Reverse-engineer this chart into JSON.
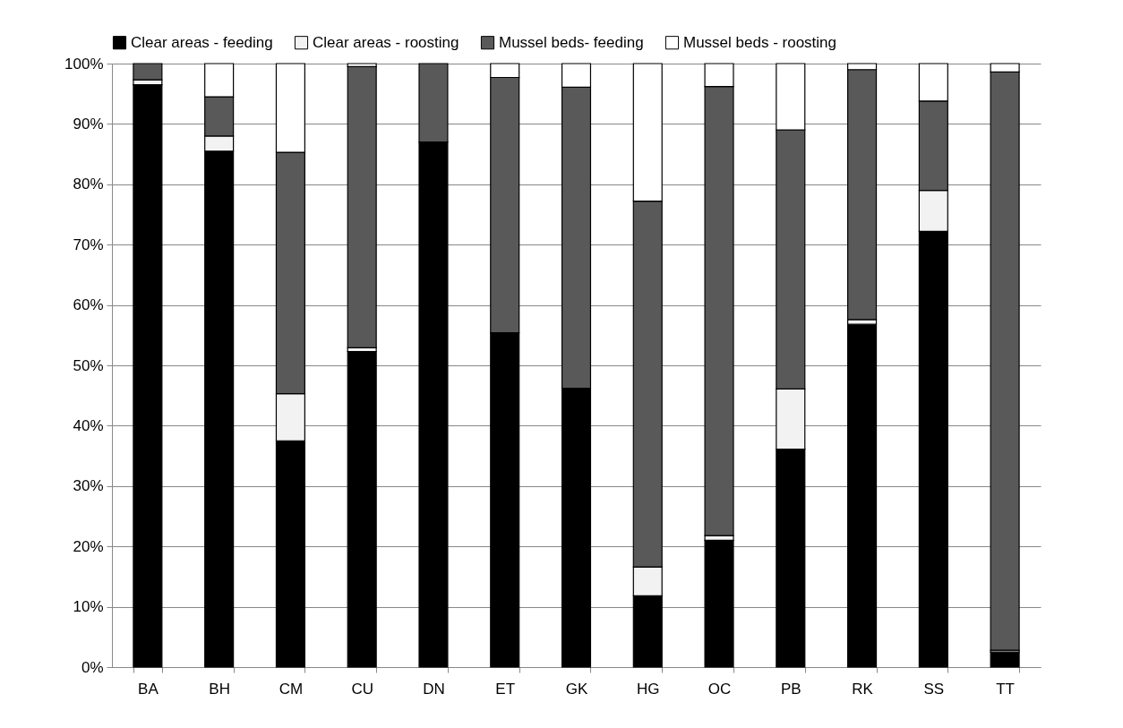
{
  "chart_data": {
    "type": "bar",
    "stacked": true,
    "categories": [
      "BA",
      "BH",
      "CM",
      "CU",
      "DN",
      "ET",
      "GK",
      "HG",
      "OC",
      "PB",
      "RK",
      "SS",
      "TT"
    ],
    "series": [
      {
        "name": "Clear areas - feeding",
        "color": "#000000",
        "values": [
          96.5,
          85.5,
          37.5,
          52.3,
          87,
          55.4,
          46.2,
          11.8,
          21,
          36.1,
          56.8,
          72.2,
          2.5
        ]
      },
      {
        "name": "Clear areas - roosting",
        "color": "#f2f2f2",
        "values": [
          0.8,
          2.5,
          7.8,
          0.6,
          0,
          0,
          0,
          4.8,
          0.8,
          10,
          0.8,
          6.8,
          0.3
        ]
      },
      {
        "name": "Mussel beds- feeding",
        "color": "#595959",
        "values": [
          2.7,
          6.5,
          40,
          46.6,
          13,
          42.3,
          49.9,
          60.6,
          74.4,
          42.9,
          41.4,
          14.8,
          95.8
        ]
      },
      {
        "name": "Mussel beds - roosting",
        "color": "#ffffff",
        "values": [
          0,
          5.5,
          14.7,
          0.5,
          0,
          2.3,
          3.9,
          22.8,
          3.8,
          11,
          1,
          6.2,
          1.4
        ]
      }
    ],
    "ylim": [
      0,
      100
    ],
    "yticks": [
      {
        "value": 0,
        "label": "0%"
      },
      {
        "value": 10,
        "label": "10%"
      },
      {
        "value": 20,
        "label": "20%"
      },
      {
        "value": 30,
        "label": "30%"
      },
      {
        "value": 40,
        "label": "40%"
      },
      {
        "value": 50,
        "label": "50%"
      },
      {
        "value": 60,
        "label": "60%"
      },
      {
        "value": 70,
        "label": "70%"
      },
      {
        "value": 80,
        "label": "80%"
      },
      {
        "value": 90,
        "label": "90%"
      },
      {
        "value": 100,
        "label": "100%"
      }
    ],
    "grid": "y",
    "legend": "top"
  }
}
